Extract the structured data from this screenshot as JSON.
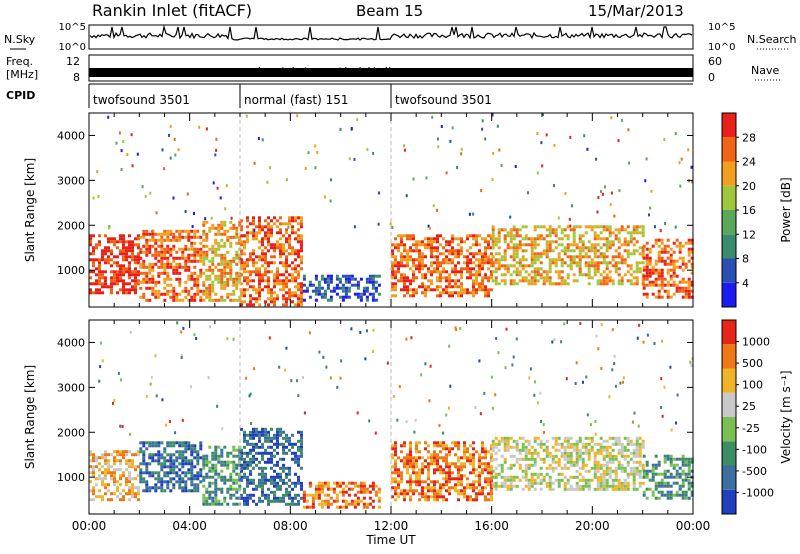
{
  "header": {
    "site": "Rankin Inlet (fitACF)",
    "beam": "Beam 15",
    "date": "15/Mar/2013"
  },
  "top_panel": {
    "left_label": "N.Sky",
    "left_ticks": [
      "10^5",
      "10^0"
    ],
    "right_label": "N.Search",
    "right_ticks": [
      "10^5",
      "10^0"
    ]
  },
  "freq_panel": {
    "left_label_line1": "Freq.",
    "left_label_line2": "[MHz]",
    "left_ticks": [
      "12",
      "8"
    ],
    "right_label": "Nave",
    "right_ticks": [
      "60",
      "0"
    ]
  },
  "cpid": {
    "label": "CPID",
    "segments": [
      {
        "start_h": 0,
        "end_h": 6,
        "name": "twofsound 3501"
      },
      {
        "start_h": 6,
        "end_h": 12,
        "name": "normal (fast) 151"
      },
      {
        "start_h": 12,
        "end_h": 24,
        "name": "twofsound 3501"
      }
    ]
  },
  "chart_data": [
    {
      "type": "heatmap",
      "title": "Power",
      "ylabel": "Slant Range [km]",
      "ylim": [
        180,
        4500
      ],
      "xlim_h": [
        0,
        24
      ],
      "yticks": [
        "1000",
        "2000",
        "3000",
        "4000"
      ],
      "colorbar_label": "Power [dB]",
      "colorbar_ticks": [
        "28",
        "24",
        "20",
        "16",
        "12",
        "8",
        "4"
      ],
      "colors": [
        "#1c1cf0",
        "#2850b4",
        "#3a8c6c",
        "#5aa85a",
        "#a0c83c",
        "#f0a01e",
        "#f06414",
        "#e82018"
      ],
      "regions": [
        {
          "start_h": 0.0,
          "end_h": 2.0,
          "r_lo": 500,
          "r_hi": 1800,
          "level": 7
        },
        {
          "start_h": 2.0,
          "end_h": 4.5,
          "r_lo": 350,
          "r_hi": 1900,
          "level": 6
        },
        {
          "start_h": 4.5,
          "end_h": 6.0,
          "r_lo": 300,
          "r_hi": 2100,
          "level": 5
        },
        {
          "start_h": 6.0,
          "end_h": 8.5,
          "r_lo": 250,
          "r_hi": 2200,
          "level": 6
        },
        {
          "start_h": 8.5,
          "end_h": 11.5,
          "r_lo": 300,
          "r_hi": 900,
          "level": 1
        },
        {
          "start_h": 12.0,
          "end_h": 16.0,
          "r_lo": 400,
          "r_hi": 1800,
          "level": 6
        },
        {
          "start_h": 16.0,
          "end_h": 22.0,
          "r_lo": 700,
          "r_hi": 2000,
          "level": 5
        },
        {
          "start_h": 22.0,
          "end_h": 24.0,
          "r_lo": 400,
          "r_hi": 1700,
          "level": 6
        }
      ]
    },
    {
      "type": "heatmap",
      "title": "Velocity",
      "ylabel": "Slant Range [km]",
      "ylim": [
        180,
        4500
      ],
      "xlim_h": [
        0,
        24
      ],
      "xticks": [
        "00:00",
        "04:00",
        "08:00",
        "12:00",
        "16:00",
        "20:00",
        "00:00"
      ],
      "xlabel": "Time UT",
      "yticks": [
        "1000",
        "2000",
        "3000",
        "4000"
      ],
      "colorbar_label": "Velocity [m s⁻¹]",
      "colorbar_ticks": [
        "1000",
        "500",
        "100",
        "25",
        "-25",
        "-100",
        "-500",
        "-1000"
      ],
      "colors": [
        "#2040c0",
        "#3c6ea0",
        "#3c8c64",
        "#78c050",
        "#c8c8c8",
        "#f0b428",
        "#f07814",
        "#e82418"
      ],
      "regions": [
        {
          "start_h": 0.0,
          "end_h": 2.0,
          "r_lo": 500,
          "r_hi": 1600,
          "level": 5
        },
        {
          "start_h": 2.0,
          "end_h": 4.5,
          "r_lo": 700,
          "r_hi": 1800,
          "level": 1
        },
        {
          "start_h": 4.5,
          "end_h": 6.0,
          "r_lo": 400,
          "r_hi": 1700,
          "level": 2
        },
        {
          "start_h": 6.0,
          "end_h": 8.5,
          "r_lo": 400,
          "r_hi": 2100,
          "level": 1
        },
        {
          "start_h": 8.5,
          "end_h": 11.5,
          "r_lo": 300,
          "r_hi": 900,
          "level": 6
        },
        {
          "start_h": 12.0,
          "end_h": 16.0,
          "r_lo": 500,
          "r_hi": 1800,
          "level": 6
        },
        {
          "start_h": 16.0,
          "end_h": 22.0,
          "r_lo": 700,
          "r_hi": 1900,
          "level": 4
        },
        {
          "start_h": 22.0,
          "end_h": 24.0,
          "r_lo": 500,
          "r_hi": 1500,
          "level": 2
        }
      ]
    }
  ]
}
